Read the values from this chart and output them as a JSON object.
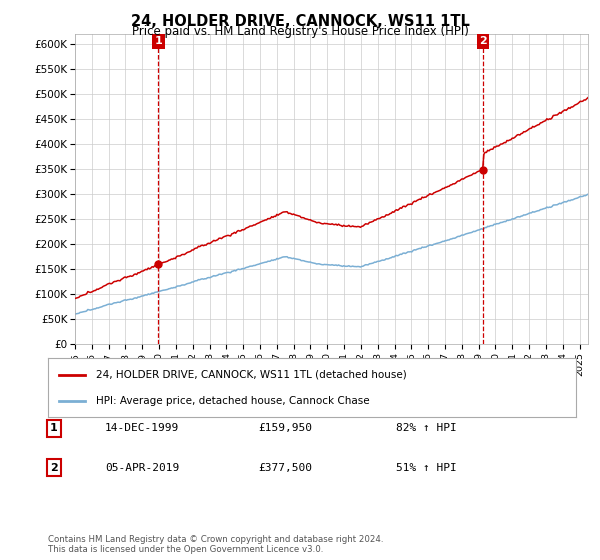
{
  "title": "24, HOLDER DRIVE, CANNOCK, WS11 1TL",
  "subtitle": "Price paid vs. HM Land Registry's House Price Index (HPI)",
  "ylabel_ticks": [
    "£0",
    "£50K",
    "£100K",
    "£150K",
    "£200K",
    "£250K",
    "£300K",
    "£350K",
    "£400K",
    "£450K",
    "£500K",
    "£550K",
    "£600K"
  ],
  "ylim": [
    0,
    620000
  ],
  "ytick_vals": [
    0,
    50000,
    100000,
    150000,
    200000,
    250000,
    300000,
    350000,
    400000,
    450000,
    500000,
    550000,
    600000
  ],
  "sale1_date": 1999.96,
  "sale1_price": 159950,
  "sale2_date": 2019.25,
  "sale2_price": 377500,
  "hpi_color": "#7bafd4",
  "price_color": "#cc0000",
  "annotation_box_color": "#cc0000",
  "background_color": "#ffffff",
  "grid_color": "#cccccc",
  "legend_label_red": "24, HOLDER DRIVE, CANNOCK, WS11 1TL (detached house)",
  "legend_label_blue": "HPI: Average price, detached house, Cannock Chase",
  "note1_num": "1",
  "note1_date": "14-DEC-1999",
  "note1_price": "£159,950",
  "note1_hpi": "82% ↑ HPI",
  "note2_num": "2",
  "note2_date": "05-APR-2019",
  "note2_price": "£377,500",
  "note2_hpi": "51% ↑ HPI",
  "footer": "Contains HM Land Registry data © Crown copyright and database right 2024.\nThis data is licensed under the Open Government Licence v3.0."
}
